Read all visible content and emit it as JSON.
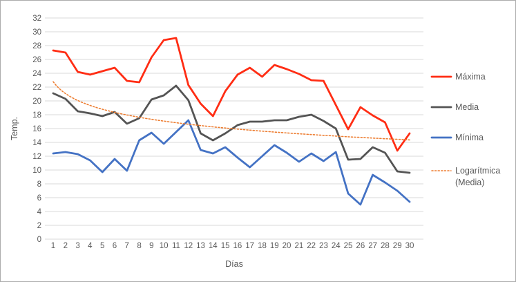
{
  "chart_data": {
    "type": "line",
    "title": "",
    "xlabel": "Días",
    "ylabel": "Temp.",
    "x": [
      1,
      2,
      3,
      4,
      5,
      6,
      7,
      8,
      9,
      10,
      11,
      12,
      13,
      14,
      15,
      16,
      17,
      18,
      19,
      20,
      21,
      22,
      23,
      24,
      25,
      26,
      27,
      28,
      29,
      30
    ],
    "xticks": [
      1,
      2,
      3,
      4,
      5,
      6,
      7,
      8,
      9,
      10,
      11,
      12,
      13,
      14,
      15,
      16,
      17,
      18,
      19,
      20,
      21,
      22,
      23,
      24,
      25,
      26,
      27,
      28,
      29,
      30
    ],
    "yticks": [
      0,
      2,
      4,
      6,
      8,
      10,
      12,
      14,
      16,
      18,
      20,
      22,
      24,
      26,
      28,
      30,
      32
    ],
    "ylim": [
      0,
      32
    ],
    "grid": true,
    "legend_position": "right",
    "series": [
      {
        "name": "Máxima",
        "color": "#ff2d14",
        "style": "solid",
        "values": [
          27.3,
          27.0,
          24.2,
          23.8,
          24.3,
          24.8,
          22.9,
          22.7,
          26.3,
          28.8,
          29.1,
          22.3,
          19.6,
          17.8,
          21.4,
          23.8,
          24.8,
          23.5,
          25.2,
          24.6,
          23.9,
          23.0,
          22.9,
          19.4,
          15.9,
          19.1,
          17.9,
          16.9,
          12.8,
          15.3
        ]
      },
      {
        "name": "Media",
        "color": "#545454",
        "style": "solid",
        "values": [
          21.1,
          20.3,
          18.5,
          18.2,
          17.8,
          18.4,
          16.7,
          17.5,
          20.2,
          20.8,
          22.2,
          20.1,
          15.3,
          14.3,
          15.3,
          16.5,
          17.0,
          17.0,
          17.2,
          17.2,
          17.7,
          18.0,
          17.1,
          16.0,
          11.5,
          11.6,
          13.3,
          12.5,
          9.8,
          9.6
        ]
      },
      {
        "name": "Mínima",
        "color": "#4472c4",
        "style": "solid",
        "values": [
          12.4,
          12.6,
          12.3,
          11.4,
          9.7,
          11.6,
          9.9,
          14.3,
          15.4,
          13.8,
          15.5,
          17.2,
          12.9,
          12.4,
          13.3,
          11.8,
          10.4,
          12.0,
          13.6,
          12.5,
          11.2,
          12.4,
          11.3,
          12.6,
          6.6,
          5.0,
          9.3,
          8.2,
          7.0,
          5.4
        ]
      },
      {
        "name": "Logarítmica (Media)",
        "legend_lines": [
          "Logarítmica",
          "(Media)"
        ],
        "color": "#ed7d31",
        "style": "dotted",
        "trend": {
          "kind": "logarithmic",
          "a": -2.475,
          "b": 22.78
        }
      }
    ],
    "colors": {
      "gridline": "#d9d9d9",
      "tick_text": "#595959",
      "axis_title_text": "#595959",
      "legend_text": "#595959",
      "frame_border": "#ababab",
      "background": "#ffffff"
    }
  }
}
